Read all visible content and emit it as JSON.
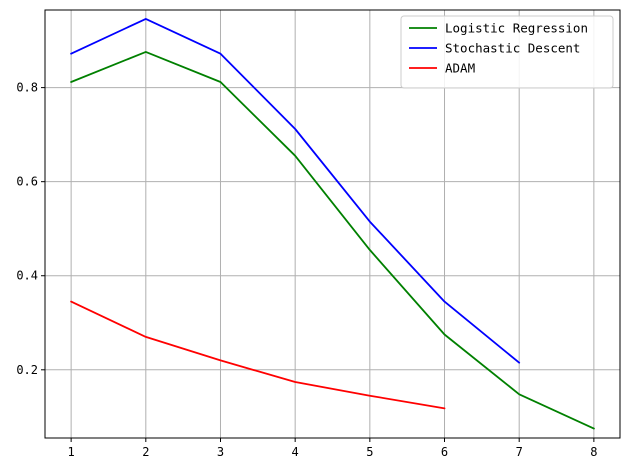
{
  "chart_data": {
    "type": "line",
    "title": "",
    "xlabel": "",
    "ylabel": "",
    "xlim": [
      0.65,
      8.35
    ],
    "ylim": [
      0.055,
      0.965
    ],
    "grid": true,
    "legend_position": "top-right",
    "xticks": [
      1,
      2,
      3,
      4,
      5,
      6,
      7,
      8
    ],
    "xtick_labels": [
      "1",
      "2",
      "3",
      "4",
      "5",
      "6",
      "7",
      "8"
    ],
    "yticks": [
      0.2,
      0.4,
      0.6,
      0.8
    ],
    "ytick_labels": [
      "0.2",
      "0.4",
      "0.6",
      "0.8"
    ],
    "series": [
      {
        "name": "Logistic Regression",
        "color": "#008000",
        "x": [
          1,
          2,
          3,
          4,
          5,
          6,
          7,
          8
        ],
        "y": [
          0.812,
          0.876,
          0.812,
          0.655,
          0.455,
          0.275,
          0.148,
          0.075
        ]
      },
      {
        "name": "Stochastic Descent",
        "color": "#0000ff",
        "x": [
          1,
          2,
          3,
          4,
          5,
          6,
          7
        ],
        "y": [
          0.872,
          0.946,
          0.872,
          0.712,
          0.515,
          0.345,
          0.215
        ]
      },
      {
        "name": "ADAM",
        "color": "#ff0000",
        "x": [
          1,
          2,
          3,
          4,
          5,
          6
        ],
        "y": [
          0.345,
          0.27,
          0.22,
          0.174,
          0.145,
          0.118
        ]
      }
    ]
  }
}
